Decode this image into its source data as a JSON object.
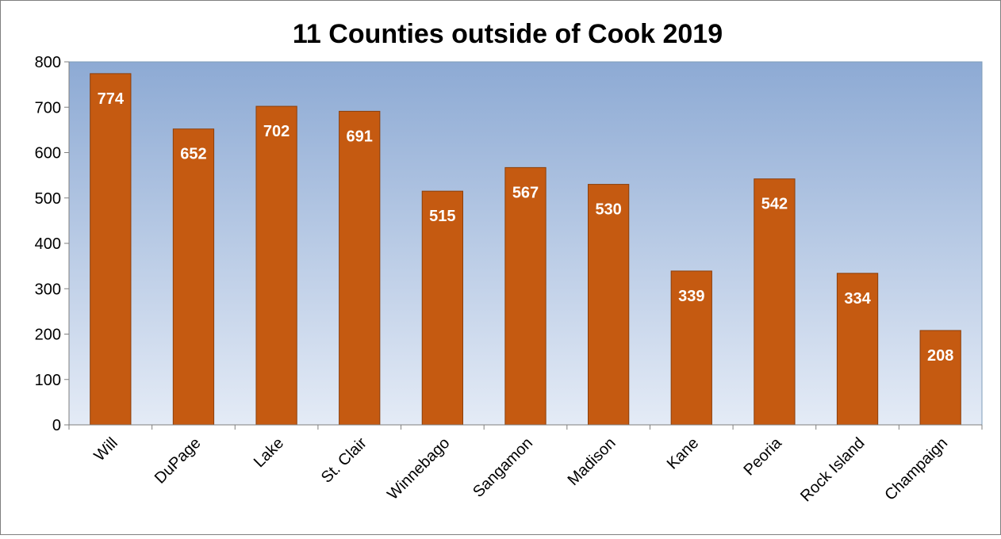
{
  "chart_data": {
    "type": "bar",
    "title": "11 Counties outside of Cook 2019",
    "xlabel": "",
    "ylabel": "",
    "categories": [
      "Will",
      "DuPage",
      "Lake",
      "St. Clair",
      "Winnebago",
      "Sangamon",
      "Madison",
      "Kane",
      "Peoria",
      "Rock Island",
      "Champaign"
    ],
    "values": [
      774,
      652,
      702,
      691,
      515,
      567,
      530,
      339,
      542,
      334,
      208
    ],
    "ylim": [
      0,
      800
    ],
    "yticks": [
      0,
      100,
      200,
      300,
      400,
      500,
      600,
      700,
      800
    ],
    "grid": false,
    "legend": "none",
    "colors": {
      "bar": "#C55A11",
      "bar_border": "#8B3F0B",
      "plot_top": "#8DAAD4",
      "plot_bottom": "#E4EBF6",
      "axis": "#7F7F7F",
      "label": "#FFFFFF"
    }
  }
}
